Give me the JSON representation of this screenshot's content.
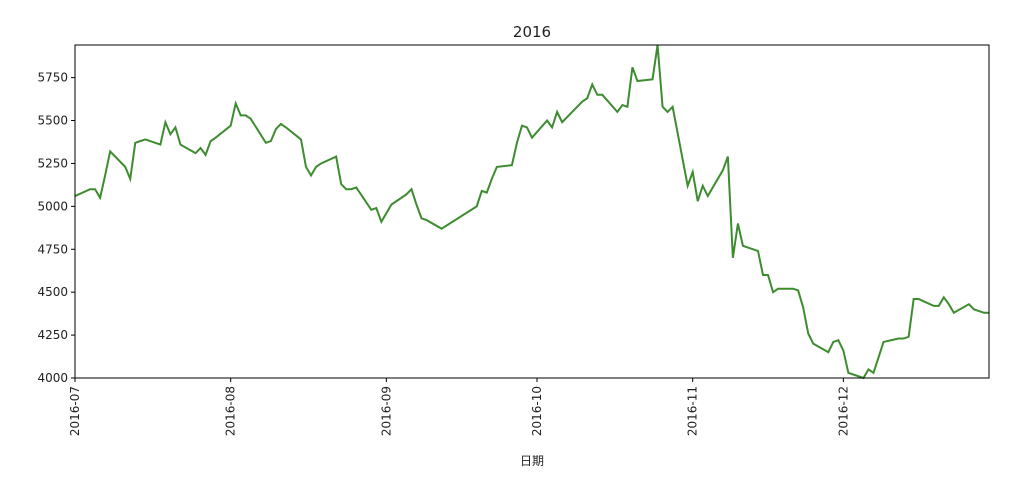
{
  "chart_data": {
    "type": "line",
    "title": "2016",
    "xlabel": "日期",
    "ylabel": "",
    "xlim": [
      "2016-07-01",
      "2016-12-30"
    ],
    "ylim": [
      4000,
      5940
    ],
    "x_ticks": [
      "2016-07",
      "2016-08",
      "2016-09",
      "2016-10",
      "2016-11",
      "2016-12"
    ],
    "x_tick_dates": [
      "2016-07-01",
      "2016-08-01",
      "2016-09-01",
      "2016-10-01",
      "2016-11-01",
      "2016-12-01"
    ],
    "y_ticks": [
      4000,
      4250,
      4500,
      4750,
      5000,
      5250,
      5500,
      5750
    ],
    "grid": false,
    "line_color": "#3d8c2f",
    "series": [
      {
        "x": [
          "2016-07-01",
          "2016-07-04",
          "2016-07-05",
          "2016-07-06",
          "2016-07-07",
          "2016-07-08",
          "2016-07-11",
          "2016-07-12",
          "2016-07-13",
          "2016-07-14",
          "2016-07-15",
          "2016-07-18",
          "2016-07-19",
          "2016-07-20",
          "2016-07-21",
          "2016-07-22",
          "2016-07-25",
          "2016-07-26",
          "2016-07-27",
          "2016-07-28",
          "2016-07-29",
          "2016-08-01",
          "2016-08-02",
          "2016-08-03",
          "2016-08-04",
          "2016-08-05",
          "2016-08-08",
          "2016-08-09",
          "2016-08-10",
          "2016-08-11",
          "2016-08-12",
          "2016-08-15",
          "2016-08-16",
          "2016-08-17",
          "2016-08-18",
          "2016-08-19",
          "2016-08-22",
          "2016-08-23",
          "2016-08-24",
          "2016-08-25",
          "2016-08-26",
          "2016-08-29",
          "2016-08-30",
          "2016-08-31",
          "2016-09-01",
          "2016-09-02",
          "2016-09-05",
          "2016-09-06",
          "2016-09-07",
          "2016-09-08",
          "2016-09-09",
          "2016-09-12",
          "2016-09-19",
          "2016-09-20",
          "2016-09-21",
          "2016-09-22",
          "2016-09-23",
          "2016-09-26",
          "2016-09-27",
          "2016-09-28",
          "2016-09-29",
          "2016-09-30",
          "2016-10-03",
          "2016-10-04",
          "2016-10-05",
          "2016-10-06",
          "2016-10-07",
          "2016-10-10",
          "2016-10-11",
          "2016-10-12",
          "2016-10-13",
          "2016-10-14",
          "2016-10-17",
          "2016-10-18",
          "2016-10-19",
          "2016-10-20",
          "2016-10-21",
          "2016-10-24",
          "2016-10-25",
          "2016-10-26",
          "2016-10-27",
          "2016-10-28",
          "2016-10-31",
          "2016-11-01",
          "2016-11-02",
          "2016-11-03",
          "2016-11-04",
          "2016-11-07",
          "2016-11-08",
          "2016-11-09",
          "2016-11-10",
          "2016-11-11",
          "2016-11-14",
          "2016-11-15",
          "2016-11-16",
          "2016-11-17",
          "2016-11-18",
          "2016-11-21",
          "2016-11-22",
          "2016-11-23",
          "2016-11-24",
          "2016-11-25",
          "2016-11-28",
          "2016-11-29",
          "2016-11-30",
          "2016-12-01",
          "2016-12-02",
          "2016-12-05",
          "2016-12-06",
          "2016-12-07",
          "2016-12-08",
          "2016-12-09",
          "2016-12-12",
          "2016-12-13",
          "2016-12-14",
          "2016-12-15",
          "2016-12-16",
          "2016-12-19",
          "2016-12-20",
          "2016-12-21",
          "2016-12-22",
          "2016-12-23",
          "2016-12-26",
          "2016-12-27",
          "2016-12-28",
          "2016-12-29",
          "2016-12-30"
        ],
        "y": [
          5060,
          5100,
          5100,
          5050,
          5180,
          5320,
          5230,
          5160,
          5370,
          5380,
          5390,
          5360,
          5490,
          5420,
          5460,
          5360,
          5310,
          5340,
          5300,
          5380,
          5400,
          5470,
          5600,
          5530,
          5530,
          5510,
          5370,
          5380,
          5450,
          5480,
          5460,
          5390,
          5230,
          5180,
          5230,
          5250,
          5290,
          5130,
          5100,
          5100,
          5110,
          4980,
          4990,
          4910,
          4960,
          5010,
          5070,
          5100,
          5010,
          4930,
          4920,
          4870,
          5000,
          5090,
          5080,
          5160,
          5230,
          5240,
          5370,
          5470,
          5460,
          5400,
          5500,
          5460,
          5550,
          5490,
          5520,
          5610,
          5630,
          5710,
          5650,
          5650,
          5550,
          5590,
          5580,
          5810,
          5730,
          5740,
          5940,
          5580,
          5550,
          5580,
          5120,
          5200,
          5030,
          5120,
          5060,
          5210,
          5290,
          4700,
          4900,
          4770,
          4740,
          4600,
          4600,
          4500,
          4520,
          4520,
          4510,
          4410,
          4260,
          4200,
          4150,
          4210,
          4220,
          4160,
          4030,
          4000,
          4050,
          4030,
          4120,
          4210,
          4230,
          4230,
          4240,
          4460,
          4460,
          4420,
          4420,
          4470,
          4430,
          4380,
          4430,
          4400,
          4390,
          4380,
          4380
        ]
      }
    ]
  }
}
